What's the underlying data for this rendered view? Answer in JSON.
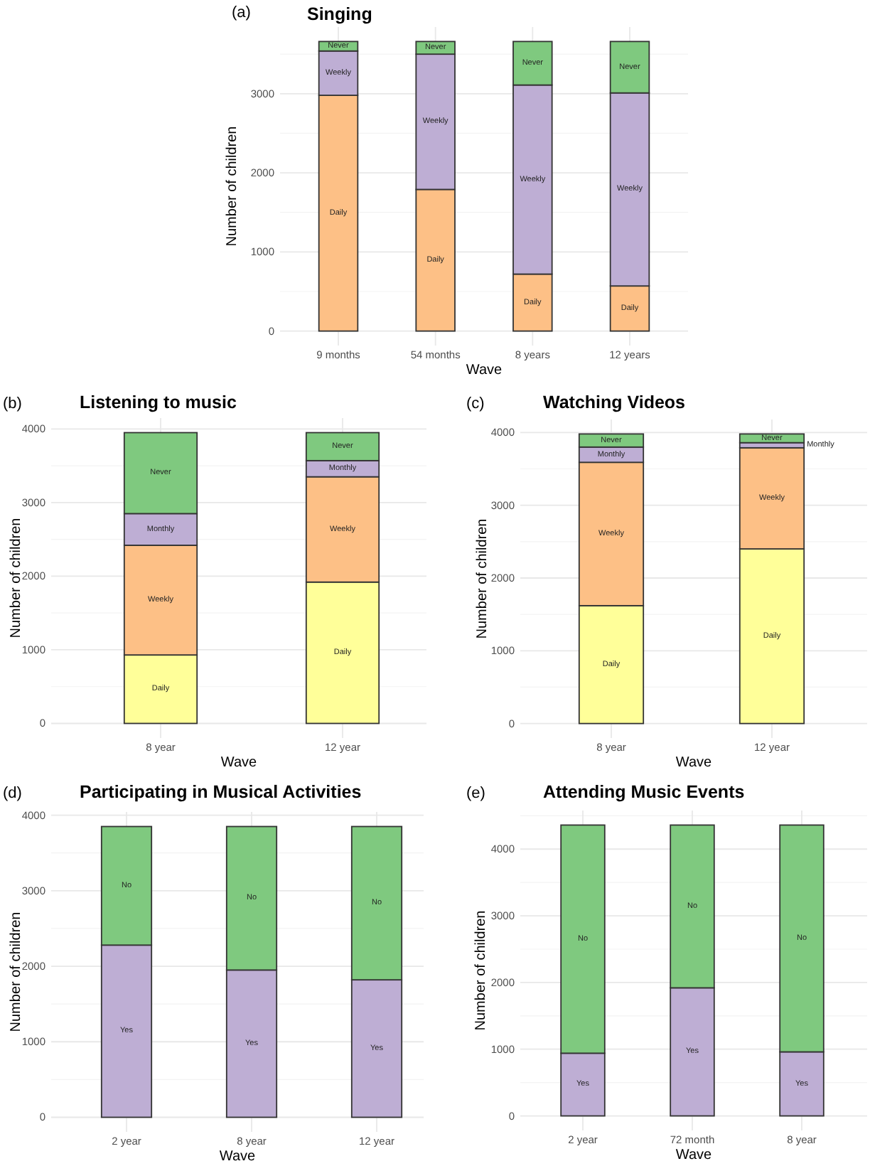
{
  "chart_data": [
    {
      "type": "bar",
      "stacked": true,
      "title": "Singing",
      "annotations": [
        "(a)"
      ],
      "xlabel": "Wave",
      "ylabel": "Number of children",
      "categories": [
        "9 months",
        "54 months",
        "8 years",
        "12 years"
      ],
      "series": [
        {
          "name": "Daily",
          "color": "#fdc086",
          "values": [
            2980,
            1790,
            720,
            570
          ]
        },
        {
          "name": "Weekly",
          "color": "#beaed4",
          "values": [
            560,
            1710,
            2390,
            2440
          ]
        },
        {
          "name": "Never",
          "color": "#7fc97f",
          "values": [
            120,
            160,
            550,
            650
          ]
        }
      ],
      "ylim": [
        -183,
        3843
      ],
      "yticks": [
        0,
        {
          "value": 500,
          "label": null
        },
        1000,
        {
          "value": 1500,
          "label": null
        },
        2000,
        {
          "value": 2500,
          "label": null
        },
        3000,
        {
          "value": 3500,
          "label": null
        }
      ],
      "grid": true
    },
    {
      "type": "bar",
      "stacked": true,
      "title": "Listening to music",
      "annotations": [
        "(b)"
      ],
      "xlabel": "Wave",
      "ylabel": "Number of children",
      "categories": [
        "8 year",
        "12 year"
      ],
      "series": [
        {
          "name": "Daily",
          "color": "#ffff99",
          "values": [
            930,
            1920
          ]
        },
        {
          "name": "Weekly",
          "color": "#fdc086",
          "values": [
            1490,
            1430
          ]
        },
        {
          "name": "Monthly",
          "color": "#beaed4",
          "values": [
            430,
            220
          ]
        },
        {
          "name": "Never",
          "color": "#7fc97f",
          "values": [
            1100,
            380
          ]
        }
      ],
      "ylim": [
        -198,
        4148
      ],
      "yticks": [
        0,
        {
          "value": 500,
          "label": null
        },
        1000,
        {
          "value": 1500,
          "label": null
        },
        2000,
        {
          "value": 2500,
          "label": null
        },
        3000,
        {
          "value": 3500,
          "label": null
        },
        4000
      ],
      "grid": true
    },
    {
      "type": "bar",
      "stacked": true,
      "title": "Watching Videos",
      "annotations": [
        "(c)"
      ],
      "xlabel": "Wave",
      "ylabel": "Number of children",
      "categories": [
        "8 year",
        "12 year"
      ],
      "series": [
        {
          "name": "Daily",
          "color": "#ffff99",
          "values": [
            1620,
            2400
          ]
        },
        {
          "name": "Weekly",
          "color": "#fdc086",
          "values": [
            1970,
            1390
          ]
        },
        {
          "name": "Monthly",
          "color": "#beaed4",
          "values": [
            210,
            70
          ]
        },
        {
          "name": "Never",
          "color": "#7fc97f",
          "values": [
            180,
            120
          ]
        }
      ],
      "ylim": [
        -199,
        4179
      ],
      "yticks": [
        0,
        {
          "value": 500,
          "label": null
        },
        1000,
        {
          "value": 1500,
          "label": null
        },
        2000,
        {
          "value": 2500,
          "label": null
        },
        3000,
        {
          "value": 3500,
          "label": null
        },
        4000
      ],
      "grid": true
    },
    {
      "type": "bar",
      "stacked": true,
      "title": "Participating in Musical Activities",
      "annotations": [
        "(d)"
      ],
      "xlabel": "Wave",
      "ylabel": "Number of children",
      "categories": [
        "2 year",
        "8 year",
        "12 year"
      ],
      "series": [
        {
          "name": "Yes",
          "color": "#beaed4",
          "values": [
            2280,
            1950,
            1820
          ]
        },
        {
          "name": "No",
          "color": "#7fc97f",
          "values": [
            1570,
            1900,
            2030
          ]
        }
      ],
      "ylim": [
        -193,
        4043
      ],
      "yticks": [
        0,
        {
          "value": 500,
          "label": null
        },
        1000,
        {
          "value": 1500,
          "label": null
        },
        2000,
        {
          "value": 2500,
          "label": null
        },
        3000,
        {
          "value": 3500,
          "label": null
        },
        4000
      ],
      "grid": true
    },
    {
      "type": "bar",
      "stacked": true,
      "title": "Attending Music Events",
      "annotations": [
        "(e)"
      ],
      "xlabel": "Wave",
      "ylabel": "Number of children",
      "categories": [
        "2 year",
        "72 month",
        "8 year"
      ],
      "series": [
        {
          "name": "Yes",
          "color": "#beaed4",
          "values": [
            940,
            1920,
            960
          ]
        },
        {
          "name": "No",
          "color": "#7fc97f",
          "values": [
            3420,
            2440,
            3400
          ]
        }
      ],
      "ylim": [
        -218,
        4578
      ],
      "yticks": [
        0,
        {
          "value": 500,
          "label": null
        },
        1000,
        {
          "value": 1500,
          "label": null
        },
        2000,
        {
          "value": 2500,
          "label": null
        },
        3000,
        {
          "value": 3500,
          "label": null
        },
        4000,
        {
          "value": 4500,
          "label": null
        }
      ],
      "grid": true
    }
  ]
}
